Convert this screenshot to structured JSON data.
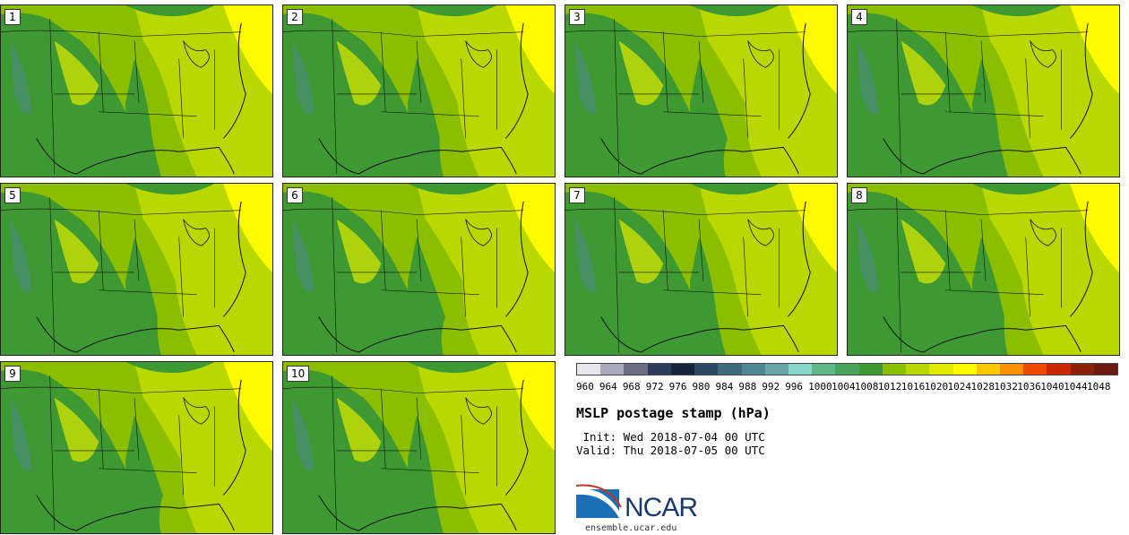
{
  "panels": [
    {
      "label": "1"
    },
    {
      "label": "2"
    },
    {
      "label": "3"
    },
    {
      "label": "4"
    },
    {
      "label": "5"
    },
    {
      "label": "6"
    },
    {
      "label": "7"
    },
    {
      "label": "8"
    },
    {
      "label": "9"
    },
    {
      "label": "10"
    }
  ],
  "legend": {
    "labels": [
      "960",
      "964",
      "968",
      "972",
      "976",
      "980",
      "984",
      "988",
      "992",
      "996",
      "1000",
      "1004",
      "1008",
      "1012",
      "1016",
      "1020",
      "1024",
      "1028",
      "1032",
      "1036",
      "1040",
      "1044",
      "1048"
    ],
    "colors": [
      "#e6e6ec",
      "#a9a9bb",
      "#6a6f86",
      "#2d3b5c",
      "#17223d",
      "#2b4966",
      "#3e6a80",
      "#4f8794",
      "#6aa6a8",
      "#86d6cc",
      "#5eb887",
      "#4aa35a",
      "#3f9932",
      "#8cbe00",
      "#b9d800",
      "#dfea00",
      "#fffa00",
      "#ffc800",
      "#ff9100",
      "#f04a00",
      "#c82800",
      "#8c1f0a",
      "#6e1a10"
    ]
  },
  "title": "MSLP postage stamp (hPa)",
  "init": " Init: Wed 2018-07-04 00 UTC",
  "valid": "Valid: Thu 2018-07-05 00 UTC",
  "logo_text": "NCAR",
  "url": "ensemble.ucar.edu",
  "colors": {
    "land_low": "#3f9932",
    "mid": "#8cbe00",
    "mid2": "#b9d800",
    "high": "#fffa00"
  }
}
